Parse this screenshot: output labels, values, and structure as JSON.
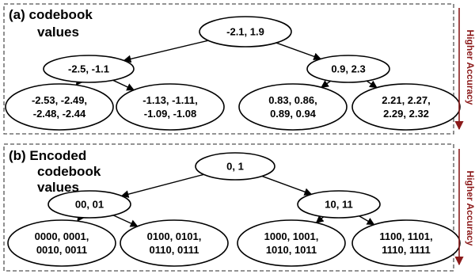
{
  "colors": {
    "accent": "#8b1a1a",
    "border": "#555555",
    "line": "#000000"
  },
  "panels": [
    {
      "title_lines": [
        "(a) codebook",
        "values"
      ],
      "side_label": "Higher Accuracy",
      "root": [
        "-2.1, 1.9"
      ],
      "mid": [
        [
          "-2.5, -1.1"
        ],
        [
          "0.9, 2.3"
        ]
      ],
      "leaves": [
        [
          "-2.53, -2.49,",
          "-2.48, -2.44"
        ],
        [
          "-1.13, -1.11,",
          "-1.09, -1.08"
        ],
        [
          "0.83, 0.86,",
          "0.89, 0.94"
        ],
        [
          "2.21, 2.27,",
          "2.29, 2.32"
        ]
      ]
    },
    {
      "title_lines": [
        "(b) Encoded",
        "codebook",
        "values"
      ],
      "side_label": "Higher Accuracy",
      "root": [
        "0, 1"
      ],
      "mid": [
        [
          "00, 01"
        ],
        [
          "10, 11"
        ]
      ],
      "leaves": [
        [
          "0000, 0001,",
          "0010, 0011"
        ],
        [
          "0100, 0101,",
          "0110, 0111"
        ],
        [
          "1000, 1001,",
          "1010, 1011"
        ],
        [
          "1100, 1101,",
          "1110, 1111"
        ]
      ]
    }
  ]
}
